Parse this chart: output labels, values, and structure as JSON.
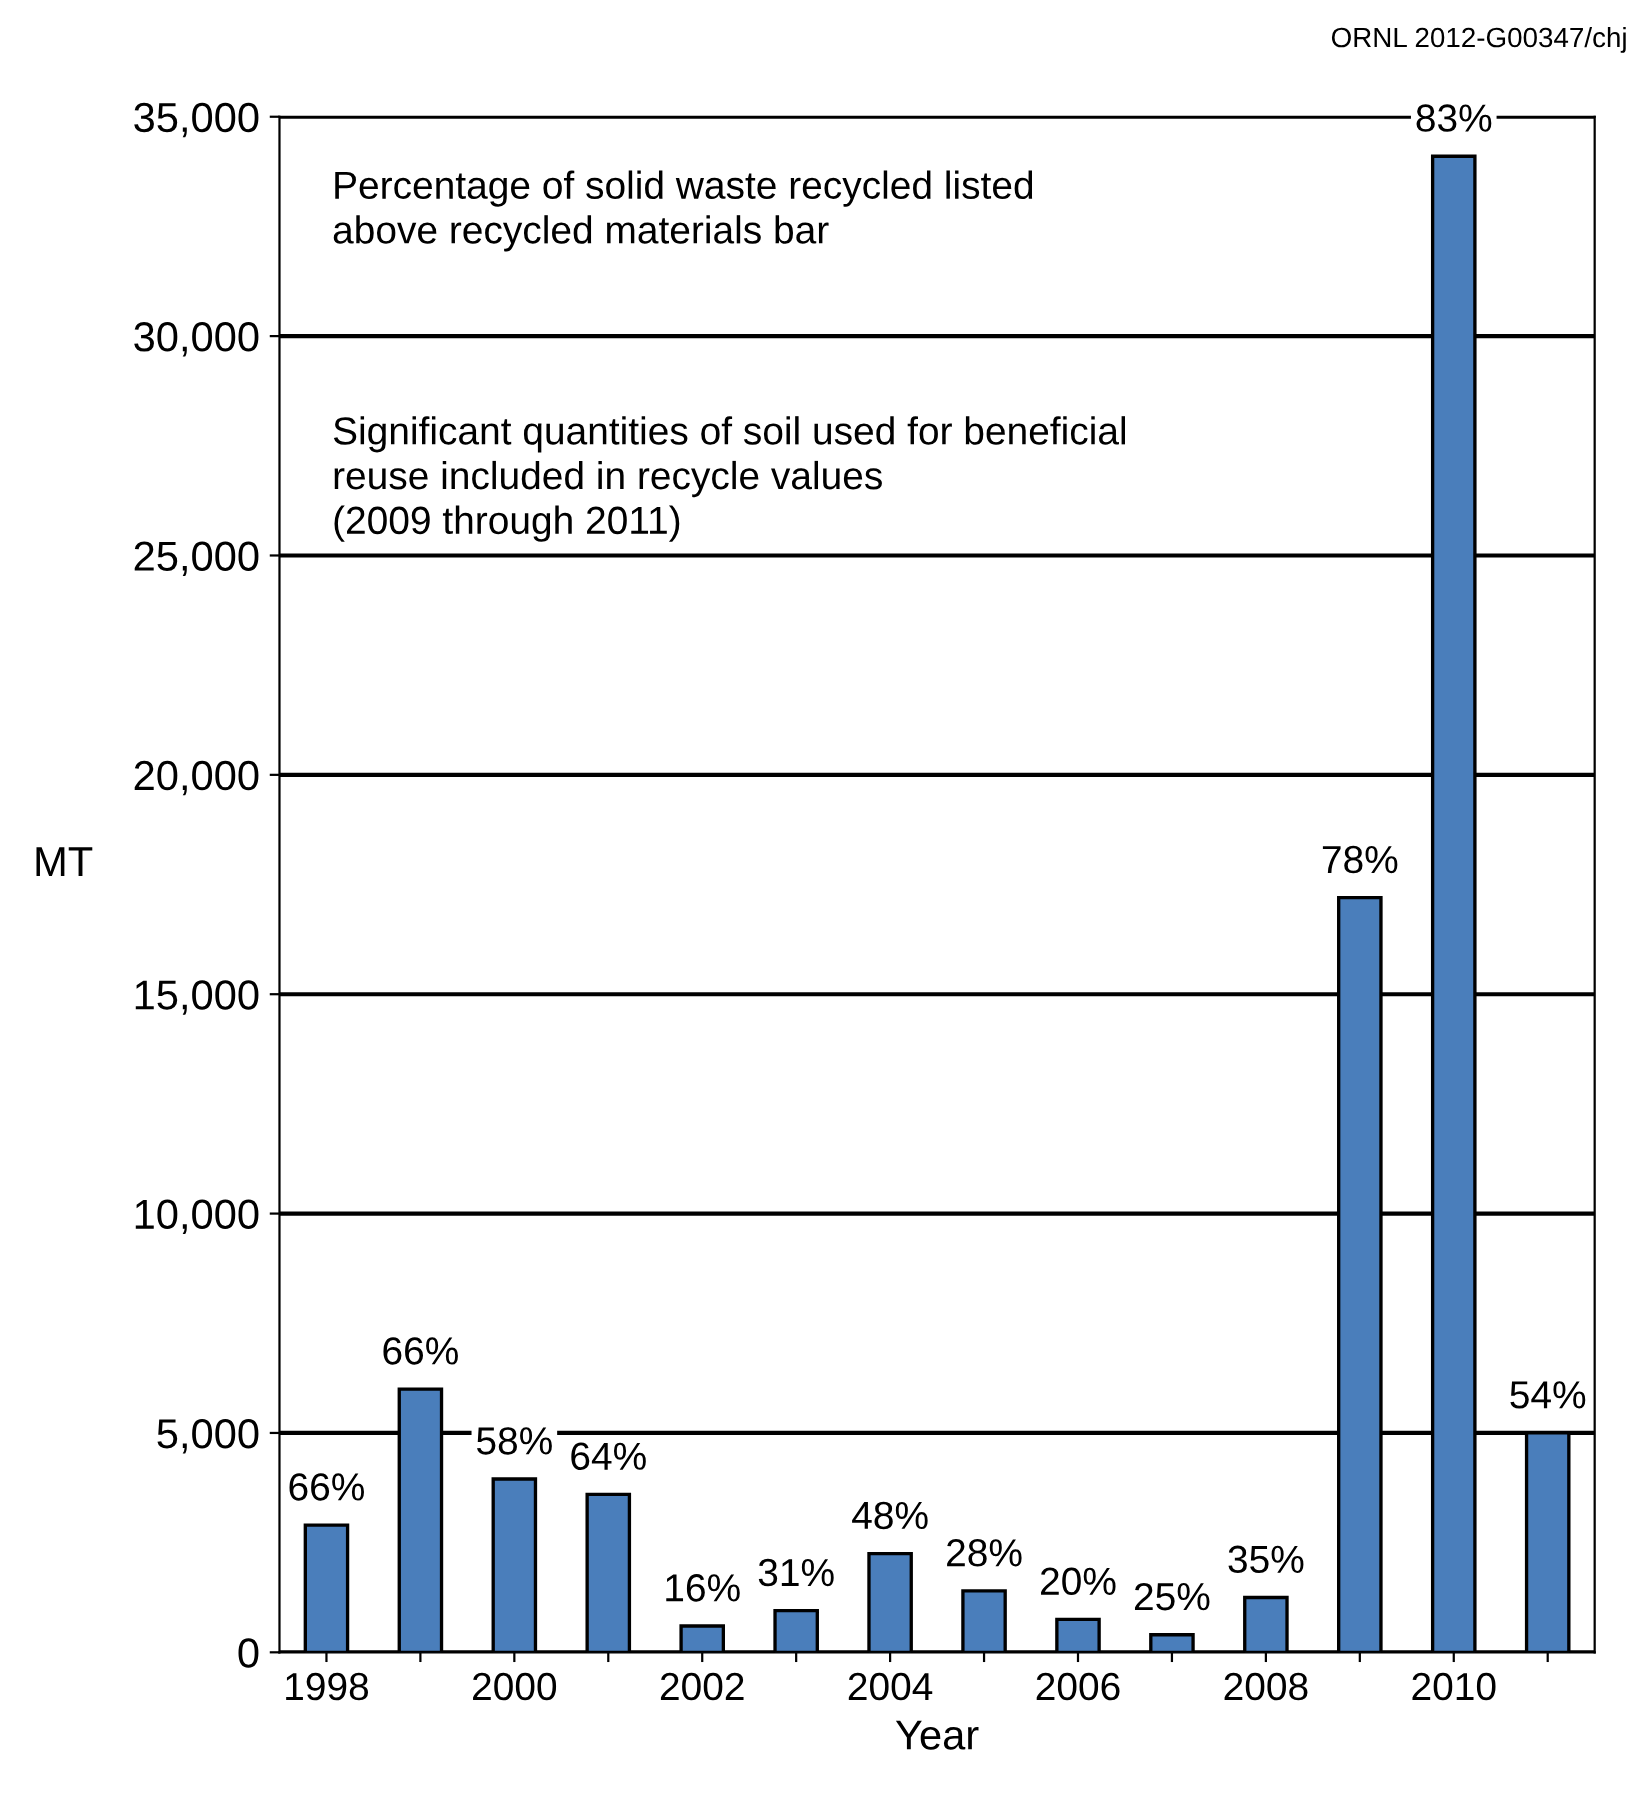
{
  "chart_data": {
    "type": "bar",
    "xlabel": "Year",
    "ylabel": "MT",
    "categories": [
      "1998",
      null,
      "2000",
      null,
      "2002",
      null,
      "2004",
      null,
      "2006",
      null,
      "2008",
      null,
      "2010",
      null
    ],
    "values": [
      2900,
      6000,
      3950,
      3600,
      600,
      950,
      2250,
      1400,
      750,
      400,
      1250,
      17200,
      34100,
      5000
    ],
    "color": "#4a7ebb",
    "ylim": [
      0,
      35000
    ],
    "yticks": [
      {
        "value": 0,
        "label": "0"
      },
      {
        "value": 5000,
        "label": "5,000"
      },
      {
        "value": 10000,
        "label": "10,000"
      },
      {
        "value": 15000,
        "label": "15,000"
      },
      {
        "value": 20000,
        "label": "20,000"
      },
      {
        "value": 25000,
        "label": "25,000"
      },
      {
        "value": 30000,
        "label": "30,000"
      },
      {
        "value": 35000,
        "label": "35,000"
      }
    ],
    "grid": "y",
    "annotations": [
      "ORNL 2012-G00347/chj",
      "Percentage of solid waste recycled listed\nabove recycled materials bar",
      "Significant quantities of soil used for beneficial\nreuse included in recycle values\n(2009 through 2011)",
      "66%",
      "66%",
      "58%",
      "64%",
      "16%",
      "31%",
      "48%",
      "28%",
      "20%",
      "25%",
      "35%",
      "78%",
      "83%",
      "54%"
    ]
  }
}
